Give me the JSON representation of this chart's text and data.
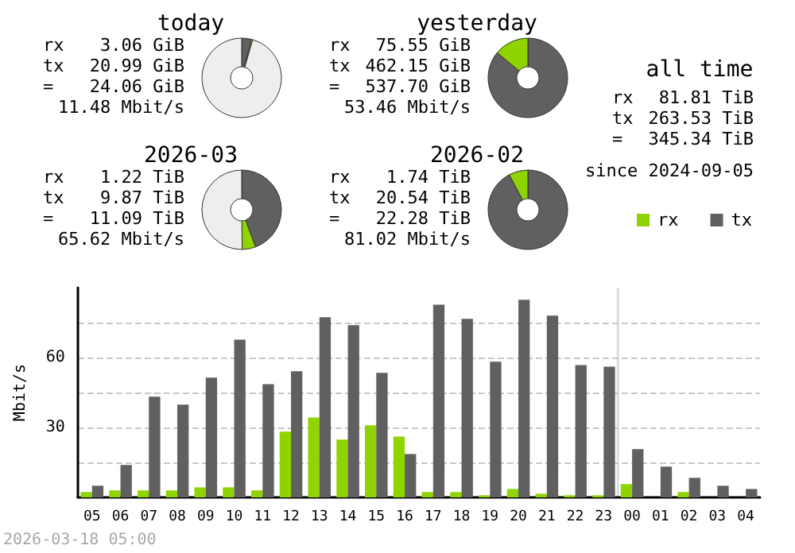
{
  "chart_data": [
    {
      "type": "donut",
      "title": "today",
      "categories": [
        null,
        null,
        null
      ],
      "values": [
        3.9,
        0.6,
        95.5
      ],
      "colors": [
        "#606060",
        "#8fd400",
        "#eeeeee"
      ],
      "annotations": [
        "rx 3.06 GiB",
        "tx 20.99 GiB",
        "= 24.06 GiB",
        "11.48 Mbit/s"
      ]
    },
    {
      "type": "donut",
      "title": "yesterday",
      "categories": [
        null,
        null
      ],
      "values": [
        85.9,
        14.1
      ],
      "colors": [
        "#606060",
        "#8fd400"
      ],
      "annotations": [
        "rx 75.55 GiB",
        "tx 462.15 GiB",
        "= 537.70 GiB",
        "53.46 Mbit/s"
      ]
    },
    {
      "type": "donut",
      "title": "2026-03",
      "categories": [
        null,
        null,
        null
      ],
      "values": [
        44.3,
        5.5,
        50.2
      ],
      "colors": [
        "#606060",
        "#8fd400",
        "#eeeeee"
      ],
      "annotations": [
        "rx 1.22 TiB",
        "tx 9.87 TiB",
        "= 11.09 TiB",
        "65.62 Mbit/s"
      ]
    },
    {
      "type": "donut",
      "title": "2026-02",
      "categories": [
        null,
        null
      ],
      "values": [
        92.2,
        7.8
      ],
      "colors": [
        "#606060",
        "#8fd400"
      ],
      "annotations": [
        "rx 1.74 TiB",
        "tx 20.54 TiB",
        "= 22.28 TiB",
        "81.02 Mbit/s"
      ]
    },
    {
      "type": "other",
      "title": "all time",
      "annotations": [
        "rx 81.81 TiB",
        "tx 263.53 TiB",
        "= 345.34 TiB",
        "since 2024-09-05"
      ]
    },
    {
      "type": "bar",
      "ylabel": "Mbit/s",
      "categories": [
        "05",
        "06",
        "07",
        "08",
        "09",
        "10",
        "11",
        "12",
        "13",
        "14",
        "15",
        "16",
        "17",
        "18",
        "19",
        "20",
        "21",
        "22",
        "23",
        "00",
        "01",
        "02",
        "03",
        "04"
      ],
      "series": [
        {
          "name": "rx",
          "color": "#8fd400",
          "values": [
            2.3,
            3,
            3,
            3,
            4.3,
            4.3,
            3,
            28.2,
            34.3,
            24.8,
            30.9,
            26.1,
            2.3,
            2.3,
            0.9,
            3.6,
            1.6,
            0.9,
            0.9,
            5.7,
            0,
            2.3,
            0,
            0
          ]
        },
        {
          "name": "tx",
          "color": "#606060",
          "values": [
            5,
            13.9,
            43.2,
            39.8,
            51.4,
            67.7,
            48.6,
            54.1,
            77.3,
            73.9,
            53.4,
            18.6,
            82.7,
            76.6,
            58.2,
            84.8,
            78,
            56.8,
            56.1,
            20.7,
            13.2,
            8.4,
            5,
            3.6
          ]
        }
      ],
      "ylim": [
        0,
        90
      ],
      "yticks": [
        {
          "value": 15,
          "label": null
        },
        30,
        {
          "value": 45,
          "label": null
        },
        60,
        {
          "value": 75,
          "label": null
        }
      ],
      "grid": "y",
      "legend": "top right",
      "ref_lines": [
        {
          "axis": "x",
          "value": "00",
          "color": "#dddddd"
        }
      ],
      "annotations": [
        "2026-03-18 05:00"
      ]
    }
  ]
}
